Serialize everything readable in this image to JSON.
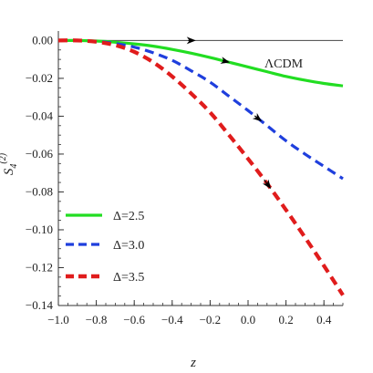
{
  "chart_data": {
    "type": "line",
    "xlabel": "z",
    "ylabel": "S",
    "ylabel_sup": "(2)",
    "ylabel_sub": "4",
    "xlim": [
      -1.0,
      0.5
    ],
    "ylim": [
      -0.14,
      0.005
    ],
    "x_ticks": [
      -1.0,
      -0.8,
      -0.6,
      -0.4,
      -0.2,
      0.0,
      0.2,
      0.4
    ],
    "x_tick_labels": [
      "−1.0",
      "−0.8",
      "−0.6",
      "−0.4",
      "−0.2",
      "0.0",
      "0.2",
      "0.4"
    ],
    "y_ticks": [
      0.0,
      -0.02,
      -0.04,
      -0.06,
      -0.08,
      -0.1,
      -0.12,
      -0.14
    ],
    "y_tick_labels": [
      "0.00",
      "−0.02",
      "−0.04",
      "−0.06",
      "−0.08",
      "−0.10",
      "−0.12",
      "−0.14"
    ],
    "grid": false,
    "legend_position": "bottom-left",
    "annotation": "ΛCDM",
    "reference_line": {
      "y": 0.0,
      "color": "#444444",
      "arrows_at_x": [
        -0.3
      ]
    },
    "series": [
      {
        "name": "Δ=2.5",
        "color": "#22dd22",
        "dash": "solid",
        "arrows_at_x": [
          -0.12
        ],
        "x": [
          -1.0,
          -0.9,
          -0.8,
          -0.7,
          -0.6,
          -0.5,
          -0.4,
          -0.3,
          -0.2,
          -0.1,
          0.0,
          0.1,
          0.2,
          0.3,
          0.4,
          0.5
        ],
        "y": [
          0.0,
          0.0,
          -0.0003,
          -0.0009,
          -0.0018,
          -0.003,
          -0.0047,
          -0.0067,
          -0.009,
          -0.0115,
          -0.014,
          -0.0165,
          -0.019,
          -0.021,
          -0.0227,
          -0.024
        ]
      },
      {
        "name": "Δ=3.0",
        "color": "#1f3fdd",
        "dash": "dashed",
        "arrows_at_x": [
          0.05
        ],
        "x": [
          -1.0,
          -0.9,
          -0.8,
          -0.7,
          -0.6,
          -0.5,
          -0.4,
          -0.3,
          -0.2,
          -0.1,
          0.0,
          0.1,
          0.2,
          0.3,
          0.4,
          0.5
        ],
        "y": [
          0.0,
          0.0,
          -0.0005,
          -0.0016,
          -0.0035,
          -0.0065,
          -0.0105,
          -0.016,
          -0.022,
          -0.0295,
          -0.037,
          -0.045,
          -0.053,
          -0.06,
          -0.0665,
          -0.073
        ]
      },
      {
        "name": "Δ=3.5",
        "color": "#e01c1c",
        "dash": "dashed",
        "arrows_at_x": [
          0.1
        ],
        "x": [
          -1.0,
          -0.9,
          -0.8,
          -0.7,
          -0.6,
          -0.5,
          -0.4,
          -0.3,
          -0.2,
          -0.1,
          0.0,
          0.1,
          0.2,
          0.3,
          0.4,
          0.5
        ],
        "y": [
          0.0,
          0.0,
          -0.0007,
          -0.0025,
          -0.006,
          -0.0115,
          -0.019,
          -0.028,
          -0.038,
          -0.05,
          -0.0625,
          -0.0755,
          -0.0895,
          -0.104,
          -0.119,
          -0.1345
        ]
      }
    ]
  }
}
